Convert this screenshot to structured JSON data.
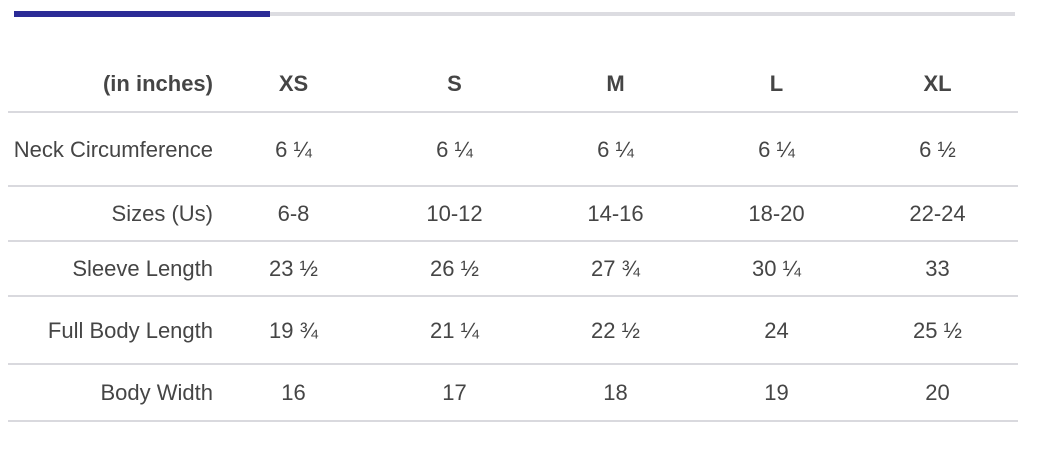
{
  "colors": {
    "accent": "#2b2b96",
    "progress_track": "#dcdce1",
    "table_border": "#d9d9de",
    "text": "#454545"
  },
  "progress": {
    "fill_percent": 25.6
  },
  "size_chart": {
    "unit_label": "(in inches)",
    "columns": [
      "XS",
      "S",
      "M",
      "L",
      "XL"
    ],
    "rows": [
      {
        "label": "Neck Circumference",
        "values": [
          "6 ¼",
          "6 ¼",
          "6 ¼",
          "6 ¼",
          "6 ½"
        ]
      },
      {
        "label": "Sizes (Us)",
        "values": [
          "6-8",
          "10-12",
          "14-16",
          "18-20",
          "22-24"
        ]
      },
      {
        "label": "Sleeve Length",
        "values": [
          "23 ½",
          "26 ½",
          "27 ¾",
          "30 ¼",
          "33"
        ]
      },
      {
        "label": "Full Body Length",
        "values": [
          "19 ¾",
          "21 ¼",
          "22 ½",
          "24",
          "25 ½"
        ]
      },
      {
        "label": "Body Width",
        "values": [
          "16",
          "17",
          "18",
          "19",
          "20"
        ]
      }
    ]
  }
}
